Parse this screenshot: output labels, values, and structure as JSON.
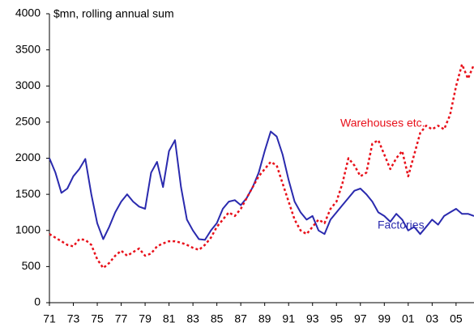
{
  "chart_data": {
    "type": "line",
    "y_label": "$mn, rolling annual sum",
    "x": [
      1971,
      1971.5,
      1972,
      1972.5,
      1973,
      1973.5,
      1974,
      1974.5,
      1975,
      1975.5,
      1976,
      1976.5,
      1977,
      1977.5,
      1978,
      1978.5,
      1979,
      1979.5,
      1980,
      1980.5,
      1981,
      1981.5,
      1982,
      1982.5,
      1983,
      1983.5,
      1984,
      1984.5,
      1985,
      1985.5,
      1986,
      1986.5,
      1987,
      1987.5,
      1988,
      1988.5,
      1989,
      1989.5,
      1990,
      1990.5,
      1991,
      1991.5,
      1992,
      1992.5,
      1993,
      1993.5,
      1994,
      1994.5,
      1995,
      1995.5,
      1996,
      1996.5,
      1997,
      1997.5,
      1998,
      1998.5,
      1999,
      1999.5,
      2000,
      2000.5,
      2001,
      2001.5,
      2002,
      2002.5,
      2003,
      2003.5,
      2004,
      2004.5,
      2005,
      2005.5,
      2006,
      2006.5
    ],
    "series": [
      {
        "name": "Factories",
        "color": "#2a2aae",
        "dashed": false,
        "values": [
          2000,
          1800,
          1520,
          1580,
          1750,
          1850,
          1990,
          1500,
          1100,
          880,
          1050,
          1250,
          1400,
          1500,
          1400,
          1330,
          1300,
          1800,
          1950,
          1600,
          2100,
          2250,
          1600,
          1150,
          1000,
          880,
          870,
          1000,
          1100,
          1300,
          1400,
          1420,
          1350,
          1450,
          1600,
          1800,
          2100,
          2370,
          2300,
          2050,
          1700,
          1400,
          1250,
          1150,
          1200,
          1000,
          950,
          1150,
          1250,
          1350,
          1450,
          1550,
          1580,
          1500,
          1400,
          1250,
          1200,
          1120,
          1230,
          1150,
          1000,
          1050,
          950,
          1050,
          1150,
          1080,
          1200,
          1250,
          1300,
          1230,
          1230,
          1200
        ]
      },
      {
        "name": "Warehouses etc.",
        "color": "#e8101a",
        "dashed": true,
        "values": [
          950,
          900,
          850,
          800,
          780,
          880,
          870,
          800,
          600,
          480,
          550,
          650,
          720,
          650,
          700,
          750,
          650,
          680,
          780,
          820,
          850,
          850,
          830,
          800,
          760,
          730,
          800,
          900,
          1050,
          1150,
          1250,
          1200,
          1300,
          1450,
          1600,
          1750,
          1850,
          1950,
          1900,
          1650,
          1400,
          1150,
          1000,
          950,
          1050,
          1150,
          1100,
          1300,
          1400,
          1650,
          2000,
          1900,
          1750,
          1800,
          2200,
          2250,
          2050,
          1850,
          2000,
          2100,
          1750,
          2050,
          2350,
          2450,
          2400,
          2450,
          2400,
          2600,
          3000,
          3300,
          3100,
          3300
        ]
      }
    ],
    "xlim": [
      1971,
      2006.5
    ],
    "xticks": [
      {
        "value": 1971,
        "label": "71"
      },
      {
        "value": 1973,
        "label": "73"
      },
      {
        "value": 1975,
        "label": "75"
      },
      {
        "value": 1977,
        "label": "77"
      },
      {
        "value": 1979,
        "label": "79"
      },
      {
        "value": 1981,
        "label": "81"
      },
      {
        "value": 1983,
        "label": "83"
      },
      {
        "value": 1985,
        "label": "85"
      },
      {
        "value": 1987,
        "label": "87"
      },
      {
        "value": 1989,
        "label": "89"
      },
      {
        "value": 1991,
        "label": "91"
      },
      {
        "value": 1993,
        "label": "93"
      },
      {
        "value": 1995,
        "label": "95"
      },
      {
        "value": 1997,
        "label": "97"
      },
      {
        "value": 1999,
        "label": "99"
      },
      {
        "value": 2001,
        "label": "01"
      },
      {
        "value": 2003,
        "label": "03"
      },
      {
        "value": 2005,
        "label": "05"
      }
    ],
    "ylim": [
      0,
      4000
    ],
    "yticks": [
      0,
      500,
      1000,
      1500,
      2000,
      2500,
      3000,
      3500,
      4000
    ],
    "grid": false
  }
}
